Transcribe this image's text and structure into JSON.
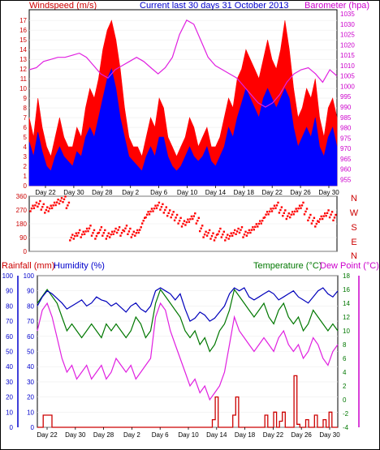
{
  "chart_data": [
    {
      "type": "line",
      "panel": "wind_baro",
      "title": "Current last 30 days 31 October 2013",
      "ylabel_left": "Windspeed (m/s)",
      "ylabel_right": "Barometer (hpa)",
      "x_ticks": [
        "Day 22",
        "Day 30",
        "Day 28",
        "Day 2",
        "Day 6",
        "Day 10",
        "Day 14",
        "Day 18",
        "Day 22",
        "Day 26",
        "Day 30"
      ],
      "left_ticks": [
        0,
        1,
        2,
        3,
        4,
        5,
        6,
        7,
        8,
        9,
        10,
        11,
        12,
        13,
        14,
        15,
        16,
        17
      ],
      "right_ticks": [
        955,
        960,
        965,
        970,
        975,
        980,
        985,
        990,
        995,
        1000,
        1005,
        1010,
        1015,
        1020,
        1025,
        1030,
        1035
      ],
      "ylim_left": [
        0,
        18.1
      ],
      "ylim_right": [
        952,
        1037
      ],
      "colors": {
        "gust": "#ff0000",
        "wind": "#0000ff",
        "baro": "#e020e0"
      },
      "baro_series": [
        1008,
        1009,
        1012,
        1013,
        1014,
        1014,
        1015,
        1016,
        1014,
        1010,
        1006,
        1004,
        1008,
        1010,
        1012,
        1014,
        1012,
        1009,
        1006,
        1009,
        1014,
        1025,
        1032,
        1030,
        1022,
        1014,
        1010,
        1008,
        1006,
        1004,
        1000,
        996,
        992,
        990,
        992,
        996,
        1002,
        1006,
        1008,
        1009,
        1006,
        1002,
        1008,
        1005
      ],
      "wind_series": [
        4.5,
        3,
        5.5,
        3.5,
        2,
        1.5,
        3,
        4,
        3,
        2.5,
        2,
        3.5,
        3,
        5,
        6,
        5,
        7,
        9,
        11,
        12,
        10,
        7,
        5,
        3,
        2.5,
        2,
        1.5,
        3,
        4,
        3,
        5,
        5,
        3,
        2,
        1.5,
        2,
        3,
        4,
        3,
        2.5,
        3,
        4,
        2.5,
        2,
        3,
        4,
        6,
        5,
        7,
        8.5,
        10,
        9,
        8,
        7,
        9,
        10,
        9,
        8,
        9,
        10,
        9,
        6,
        4,
        5,
        6,
        5,
        7,
        4,
        3,
        5,
        6,
        4
      ],
      "gust_series": [
        7,
        5,
        9,
        6,
        4,
        3,
        5,
        7,
        5,
        4,
        4,
        6,
        5,
        8,
        10,
        9,
        11,
        14,
        16,
        17,
        15,
        12,
        8,
        5,
        4,
        4,
        3,
        5,
        7,
        6,
        9,
        8,
        5,
        4,
        3,
        4,
        5,
        7,
        6,
        4,
        5,
        6,
        4,
        4,
        5,
        7,
        9,
        8,
        11,
        12,
        14,
        13,
        12,
        11,
        13,
        15,
        13,
        12,
        14,
        17,
        14,
        10,
        7,
        8,
        10,
        9,
        11,
        7,
        5,
        8,
        9,
        7
      ]
    },
    {
      "type": "scatter",
      "panel": "wind_direction",
      "ylabel_right": [
        "N",
        "W",
        "S",
        "E",
        "N"
      ],
      "y_ticks": [
        0,
        90,
        180,
        270,
        360
      ],
      "ylim": [
        0,
        360
      ],
      "x_ticks": [
        "Day 22",
        "Day 30",
        "Day 28",
        "Day 2",
        "Day 6",
        "Day 10",
        "Day 14",
        "Day 18",
        "Day 22",
        "Day 26",
        "Day 30"
      ],
      "color": "#ff0000",
      "direction_series": [
        280,
        300,
        310,
        290,
        270,
        280,
        300,
        320,
        330,
        340,
        300,
        90,
        100,
        120,
        110,
        130,
        150,
        120,
        100,
        140,
        120,
        100,
        110,
        130,
        140,
        120,
        150,
        130,
        110,
        120,
        140,
        200,
        240,
        260,
        280,
        300,
        290,
        270,
        250,
        240,
        220,
        200,
        180,
        190,
        210,
        230,
        200,
        150,
        110,
        120,
        100,
        90,
        130,
        110,
        90,
        100,
        120,
        130,
        140,
        110,
        120,
        140,
        160,
        180,
        200,
        240,
        260,
        280,
        300,
        270,
        250,
        230,
        240,
        260,
        280,
        300,
        260,
        220,
        200,
        180,
        210,
        230,
        250,
        240,
        220
      ]
    },
    {
      "type": "line",
      "panel": "rain_hum_temp",
      "ylabel_left_1": "Rainfall (mm)",
      "ylabel_left_2": "Humidity (%)",
      "ylabel_right_1": "Temperature (°C)",
      "ylabel_right_2": "Dew Point (°C)",
      "left_ticks": [
        0,
        10,
        20,
        30,
        40,
        50,
        60,
        70,
        80,
        90,
        100
      ],
      "right_ticks": [
        -4,
        -2,
        0,
        2,
        4,
        6,
        8,
        10,
        12,
        14,
        16,
        18
      ],
      "ylim_left": [
        0,
        100
      ],
      "ylim_right": [
        -4,
        18
      ],
      "x_ticks": [
        "Day 22",
        "Day 30",
        "Day 28",
        "Day 2",
        "Day 6",
        "Day 10",
        "Day 14",
        "Day 18",
        "Day 22",
        "Day 26",
        "Day 30"
      ],
      "colors": {
        "rain": "#cc0000",
        "humidity": "#0000bb",
        "temperature": "#007700",
        "dewpoint": "#e020e0"
      },
      "humidity_series": [
        80,
        86,
        90,
        88,
        85,
        82,
        78,
        80,
        82,
        84,
        80,
        82,
        86,
        84,
        83,
        80,
        82,
        79,
        76,
        80,
        82,
        78,
        76,
        80,
        90,
        92,
        90,
        88,
        84,
        88,
        78,
        70,
        72,
        76,
        74,
        70,
        72,
        76,
        80,
        88,
        92,
        90,
        92,
        86,
        84,
        86,
        88,
        90,
        88,
        84,
        86,
        88,
        90,
        86,
        84,
        82,
        86,
        90,
        92,
        88,
        86,
        90
      ],
      "temperature_series": [
        14,
        15,
        16,
        15,
        14,
        12,
        10,
        11,
        10,
        9,
        10,
        11,
        10,
        9,
        11,
        10,
        11,
        10,
        9,
        10,
        12,
        11,
        9,
        10,
        14,
        16,
        15,
        14,
        13,
        12,
        10,
        9,
        10,
        8,
        9,
        7,
        8,
        10,
        11,
        13,
        16,
        15,
        14,
        13,
        12,
        13,
        14,
        12,
        11,
        13,
        14,
        12,
        11,
        12,
        10,
        11,
        13,
        12,
        11,
        10,
        11,
        10
      ],
      "dewpoint_series": [
        10,
        13,
        14,
        12,
        9,
        6,
        4,
        5,
        3,
        4,
        5,
        3,
        4,
        5,
        3,
        4,
        6,
        5,
        4,
        5,
        3,
        4,
        5,
        6,
        12,
        14,
        13,
        10,
        8,
        6,
        4,
        2,
        3,
        1,
        2,
        0,
        1,
        2,
        4,
        8,
        12,
        10,
        9,
        8,
        7,
        8,
        9,
        8,
        7,
        9,
        10,
        8,
        7,
        8,
        6,
        7,
        9,
        8,
        6,
        5,
        7,
        8
      ],
      "rain_series": [
        0,
        0,
        8,
        8,
        8,
        0,
        0,
        0,
        0,
        0,
        0,
        0,
        0,
        0,
        0,
        0,
        0,
        0,
        0,
        0,
        0,
        0,
        0,
        0,
        0,
        0,
        0,
        0,
        0,
        0,
        0,
        0,
        0,
        0,
        0,
        0,
        0,
        0,
        0,
        0,
        0,
        0,
        0,
        0,
        0,
        0,
        0,
        0,
        0,
        0,
        0,
        0,
        0,
        0,
        0,
        0,
        0,
        0,
        0,
        0,
        5,
        20,
        0,
        0,
        0,
        0,
        0,
        8,
        20,
        0,
        0,
        0,
        0,
        0,
        0,
        0,
        0,
        0,
        8,
        0,
        0,
        10,
        0,
        4,
        10,
        0,
        0,
        0,
        34,
        2,
        0,
        0,
        5,
        0,
        0,
        8,
        0,
        0,
        5,
        0,
        10,
        0,
        0,
        0
      ]
    }
  ]
}
